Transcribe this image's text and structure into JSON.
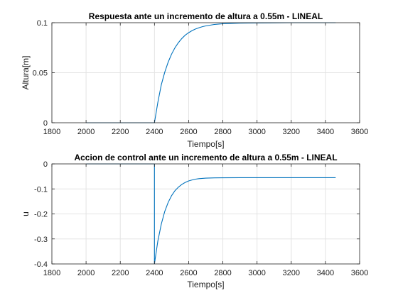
{
  "chart_data": [
    {
      "type": "line",
      "title": "Respuesta ante un incremento de altura a 0.55m - LINEAL",
      "xlabel": "Tiempo[s]",
      "ylabel": "Altura[m]",
      "xlim": [
        1800,
        3600
      ],
      "ylim": [
        0,
        0.1
      ],
      "xticks": [
        1800,
        2000,
        2200,
        2400,
        2600,
        2800,
        3000,
        3200,
        3400,
        3600
      ],
      "yticks": [
        0,
        0.05,
        0.1
      ],
      "xtick_labels": [
        "1800",
        "2000",
        "2200",
        "2400",
        "2600",
        "2800",
        "3000",
        "3200",
        "3400",
        "3600"
      ],
      "ytick_labels": [
        "0",
        "0.05",
        "0.1"
      ],
      "grid": true,
      "color": "#0072BD",
      "series": [
        {
          "x": [
            2000,
            2390,
            2400,
            2420,
            2440,
            2460,
            2480,
            2500,
            2520,
            2540,
            2560,
            2580,
            2600,
            2620,
            2640,
            2660,
            2680,
            2700,
            2750,
            2800,
            2900,
            3000,
            3200,
            3400,
            3460
          ],
          "values": [
            0,
            0,
            0,
            0.0204,
            0.0381,
            0.0505,
            0.0606,
            0.0686,
            0.075,
            0.0801,
            0.0842,
            0.0875,
            0.09,
            0.0921,
            0.0937,
            0.095,
            0.096,
            0.0968,
            0.0982,
            0.099,
            0.0996,
            0.0998,
            0.1,
            0.1,
            0.1
          ]
        }
      ]
    },
    {
      "type": "line",
      "title": "Accion de control ante un incremento de altura a 0.55m - LINEAL",
      "xlabel": "Tiempo[s]",
      "ylabel": "u",
      "xlim": [
        1800,
        3600
      ],
      "ylim": [
        -0.4,
        0
      ],
      "xticks": [
        1800,
        2000,
        2200,
        2400,
        2600,
        2800,
        3000,
        3200,
        3400,
        3600
      ],
      "yticks": [
        -0.4,
        -0.3,
        -0.2,
        -0.1,
        0
      ],
      "xtick_labels": [
        "1800",
        "2000",
        "2200",
        "2400",
        "2600",
        "2800",
        "3000",
        "3200",
        "3400",
        "3600"
      ],
      "ytick_labels": [
        "-0.4",
        "-0.3",
        "-0.2",
        "-0.1",
        "0"
      ],
      "grid": true,
      "color": "#0072BD",
      "series": [
        {
          "x": [
            2000,
            2399,
            2400,
            2400,
            2420,
            2440,
            2460,
            2480,
            2500,
            2520,
            2540,
            2560,
            2580,
            2600,
            2620,
            2640,
            2660,
            2680,
            2700,
            2750,
            2800,
            2900,
            3000,
            3200,
            3400,
            3460
          ],
          "values": [
            0,
            0,
            0,
            -0.4,
            -0.308,
            -0.24,
            -0.19,
            -0.154,
            -0.127,
            -0.107,
            -0.093,
            -0.082,
            -0.074,
            -0.068,
            -0.064,
            -0.061,
            -0.059,
            -0.058,
            -0.057,
            -0.056,
            -0.0555,
            -0.055,
            -0.055,
            -0.055,
            -0.055,
            -0.055
          ]
        }
      ]
    }
  ]
}
